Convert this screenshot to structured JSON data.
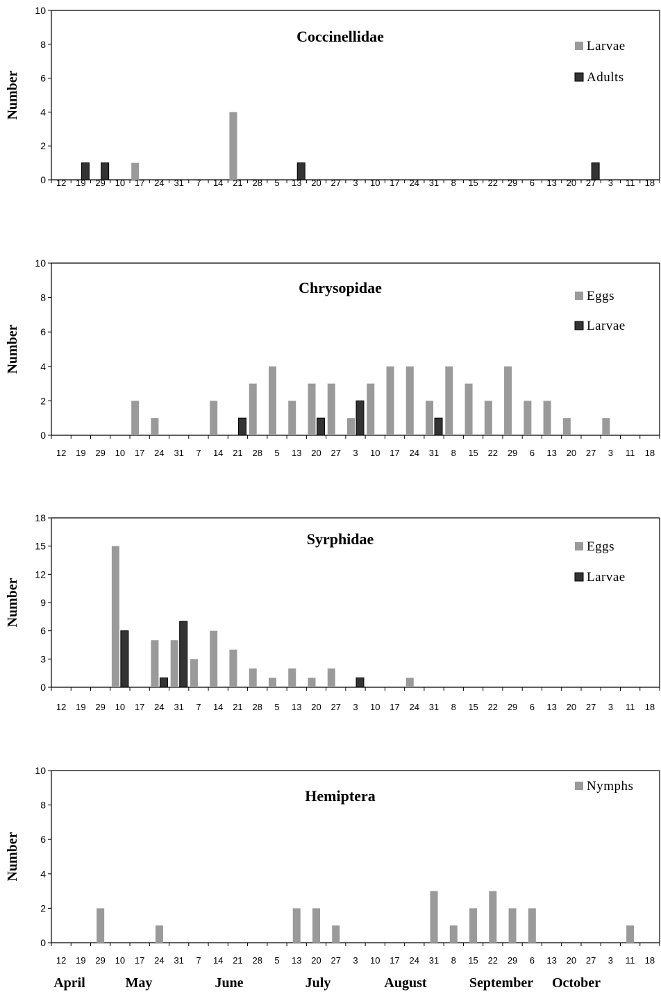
{
  "x_dates": [
    "12",
    "19",
    "29",
    "10",
    "17",
    "24",
    "31",
    "7",
    "14",
    "21",
    "28",
    "5",
    "13",
    "20",
    "27",
    "3",
    "10",
    "17",
    "24",
    "31",
    "8",
    "15",
    "22",
    "29",
    "6",
    "13",
    "20",
    "27",
    "3",
    "11",
    "18"
  ],
  "months": [
    "April",
    "May",
    "June",
    "July",
    "August",
    "September",
    "October"
  ],
  "colors": {
    "light": "#9a9a9a",
    "dark": "#333333",
    "axis": "#000000"
  },
  "chart_data": [
    {
      "type": "bar",
      "title": "Coccinellidae",
      "ylabel": "Number",
      "ylim": [
        0,
        10
      ],
      "yticks": [
        0,
        2,
        4,
        6,
        8,
        10
      ],
      "categories": [
        "12",
        "19",
        "29",
        "10",
        "17",
        "24",
        "31",
        "7",
        "14",
        "21",
        "28",
        "5",
        "13",
        "20",
        "27",
        "3",
        "10",
        "17",
        "24",
        "31",
        "8",
        "15",
        "22",
        "29",
        "6",
        "13",
        "20",
        "27",
        "3",
        "11",
        "18"
      ],
      "series": [
        {
          "name": "Larvae",
          "color": "#9a9a9a",
          "values": [
            0,
            0,
            0,
            0,
            1,
            0,
            0,
            0,
            0,
            4,
            0,
            0,
            0,
            0,
            0,
            0,
            0,
            0,
            0,
            0,
            0,
            0,
            0,
            0,
            0,
            0,
            0,
            0,
            0,
            0,
            0
          ]
        },
        {
          "name": "Adults",
          "color": "#333333",
          "values": [
            0,
            1,
            1,
            0,
            0,
            0,
            0,
            0,
            0,
            0,
            0,
            0,
            1,
            0,
            0,
            0,
            0,
            0,
            0,
            0,
            0,
            0,
            0,
            0,
            0,
            0,
            0,
            1,
            0,
            0,
            0
          ]
        }
      ],
      "legend_position": "top-right",
      "grid": false
    },
    {
      "type": "bar",
      "title": "Chrysopidae",
      "ylabel": "Number",
      "ylim": [
        0,
        10
      ],
      "yticks": [
        0,
        2,
        4,
        6,
        8,
        10
      ],
      "categories": [
        "12",
        "19",
        "29",
        "10",
        "17",
        "24",
        "31",
        "7",
        "14",
        "21",
        "28",
        "5",
        "13",
        "20",
        "27",
        "3",
        "10",
        "17",
        "24",
        "31",
        "8",
        "15",
        "22",
        "29",
        "6",
        "13",
        "20",
        "27",
        "3",
        "11",
        "18"
      ],
      "series": [
        {
          "name": "Eggs",
          "color": "#9a9a9a",
          "values": [
            0,
            0,
            0,
            0,
            2,
            1,
            0,
            0,
            2,
            0,
            3,
            4,
            2,
            3,
            3,
            1,
            3,
            4,
            4,
            2,
            4,
            3,
            2,
            4,
            2,
            2,
            1,
            0,
            1,
            0,
            0
          ]
        },
        {
          "name": "Larvae",
          "color": "#333333",
          "values": [
            0,
            0,
            0,
            0,
            0,
            0,
            0,
            0,
            0,
            1,
            0,
            0,
            0,
            1,
            0,
            2,
            0,
            0,
            0,
            1,
            0,
            0,
            0,
            0,
            0,
            0,
            0,
            0,
            0,
            0,
            0
          ]
        }
      ],
      "legend_position": "top-right",
      "grid": false
    },
    {
      "type": "bar",
      "title": "Syrphidae",
      "ylabel": "Number",
      "ylim": [
        0,
        18
      ],
      "yticks": [
        0,
        3,
        6,
        9,
        12,
        15,
        18
      ],
      "categories": [
        "12",
        "19",
        "29",
        "10",
        "17",
        "24",
        "31",
        "7",
        "14",
        "21",
        "28",
        "5",
        "13",
        "20",
        "27",
        "3",
        "10",
        "17",
        "24",
        "31",
        "8",
        "15",
        "22",
        "29",
        "6",
        "13",
        "20",
        "27",
        "3",
        "11",
        "18"
      ],
      "series": [
        {
          "name": "Eggs",
          "color": "#9a9a9a",
          "values": [
            0,
            0,
            0,
            15,
            0,
            5,
            5,
            3,
            6,
            4,
            2,
            1,
            2,
            1,
            2,
            0,
            0,
            0,
            1,
            0,
            0,
            0,
            0,
            0,
            0,
            0,
            0,
            0,
            0,
            0,
            0
          ]
        },
        {
          "name": "Larvae",
          "color": "#333333",
          "values": [
            0,
            0,
            0,
            6,
            0,
            1,
            7,
            0,
            0,
            0,
            0,
            0,
            0,
            0,
            0,
            1,
            0,
            0,
            0,
            0,
            0,
            0,
            0,
            0,
            0,
            0,
            0,
            0,
            0,
            0,
            0
          ]
        }
      ],
      "legend_position": "top-right",
      "grid": false
    },
    {
      "type": "bar",
      "title": "Hemiptera",
      "ylabel": "Number",
      "ylim": [
        0,
        10
      ],
      "yticks": [
        0,
        2,
        4,
        6,
        8,
        10
      ],
      "categories": [
        "12",
        "19",
        "29",
        "10",
        "17",
        "24",
        "31",
        "7",
        "14",
        "21",
        "28",
        "5",
        "13",
        "20",
        "27",
        "3",
        "10",
        "17",
        "24",
        "31",
        "8",
        "15",
        "22",
        "29",
        "6",
        "13",
        "20",
        "27",
        "3",
        "11",
        "18"
      ],
      "series": [
        {
          "name": "Nymphs",
          "color": "#9a9a9a",
          "values": [
            0,
            0,
            2,
            0,
            0,
            1,
            0,
            0,
            0,
            0,
            0,
            0,
            2,
            2,
            1,
            0,
            0,
            0,
            0,
            3,
            1,
            2,
            3,
            2,
            2,
            0,
            0,
            0,
            0,
            1,
            0
          ]
        }
      ],
      "legend_position": "top-right",
      "grid": false
    }
  ]
}
